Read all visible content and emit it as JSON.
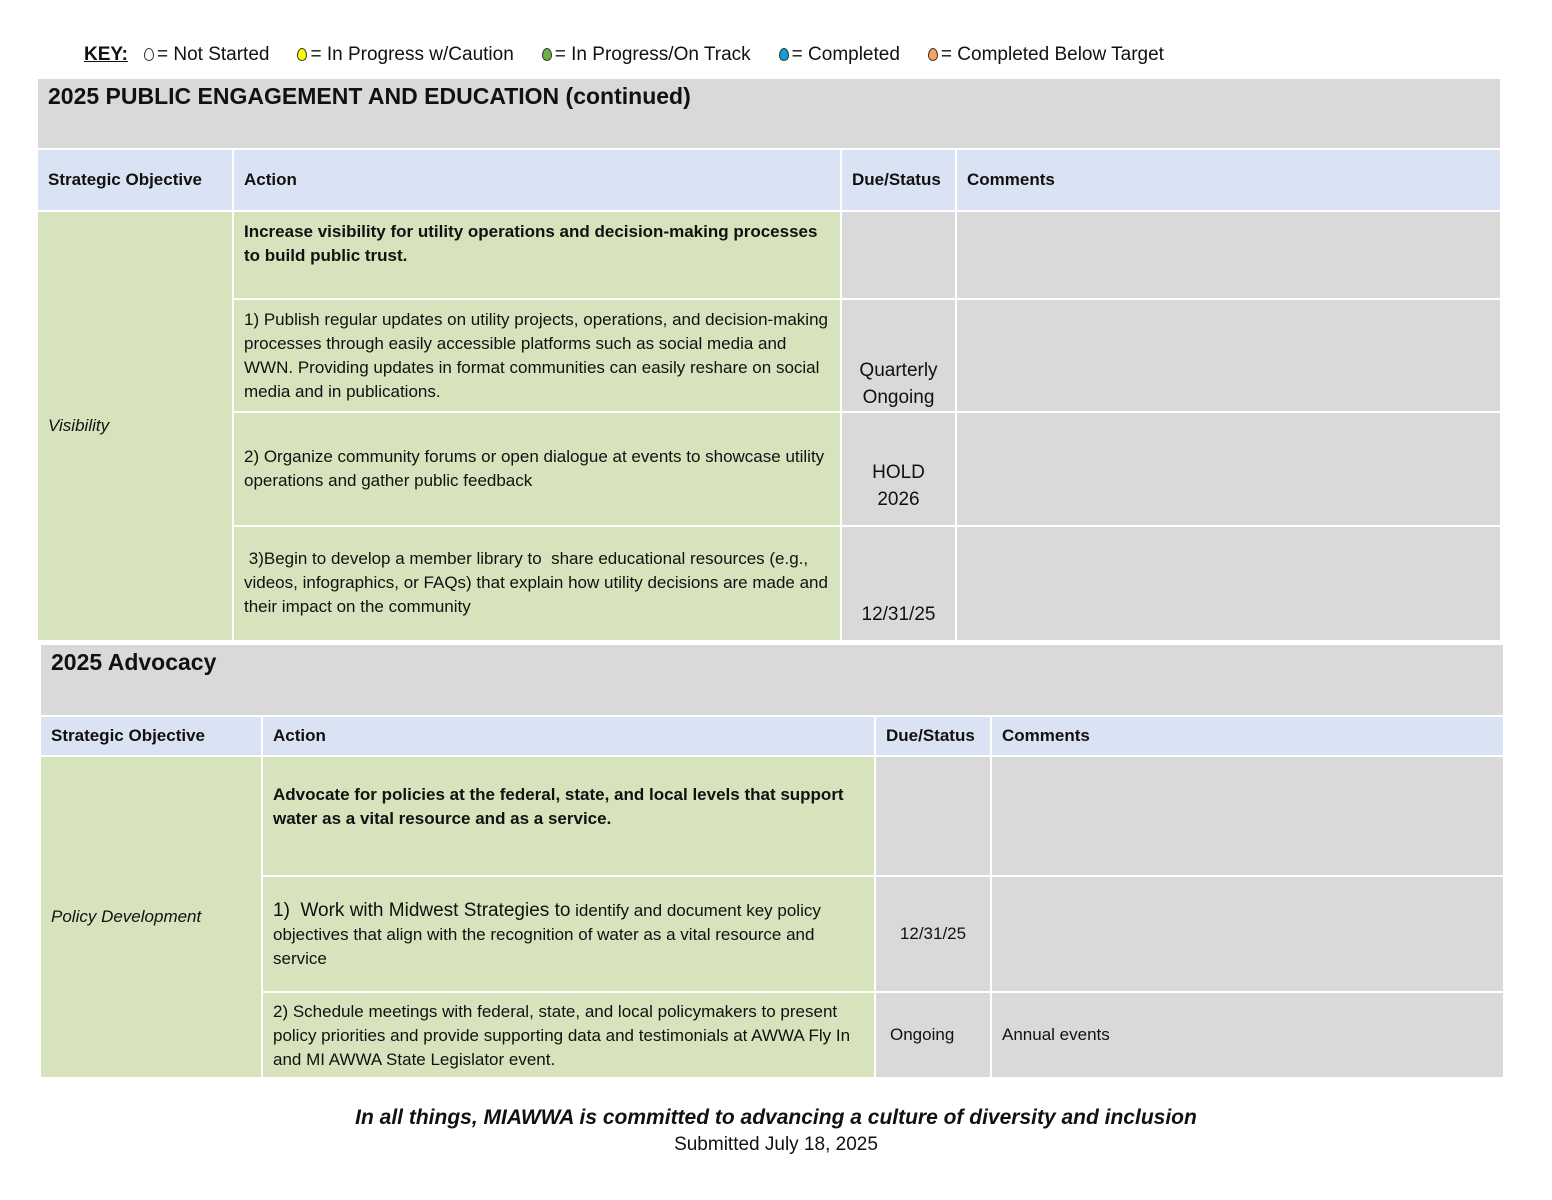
{
  "key": {
    "label": "KEY:",
    "items": [
      {
        "icon": "drop-outline-icon",
        "color": "#ffffff",
        "label": "= Not Started"
      },
      {
        "icon": "drop-yellow-icon",
        "color": "#ffff00",
        "label": "= In Progress w/Caution"
      },
      {
        "icon": "drop-green-icon",
        "color": "#70ad47",
        "label": "= In Progress/On Track"
      },
      {
        "icon": "drop-blue-icon",
        "color": "#0f9ed5",
        "label": "= Completed"
      },
      {
        "icon": "drop-orange-icon",
        "color": "#f4a460",
        "label": "= Completed Below Target"
      }
    ]
  },
  "columns": {
    "objective": "Strategic Objective",
    "action": "Action",
    "due": "Due/Status",
    "comments": "Comments"
  },
  "section1": {
    "title": "2025 PUBLIC ENGAGEMENT AND EDUCATION (continued)",
    "objective": "Visibility",
    "rows": [
      {
        "action": "Increase visibility for utility operations and decision-making processes to build public trust.",
        "due": "",
        "comments": ""
      },
      {
        "action": "1) Publish regular updates on utility projects, operations, and decision-making processes through easily accessible platforms such as social media and WWN. Providing updates in format communities can easily reshare on social media and in publications.",
        "due": "Quarterly Ongoing",
        "comments": ""
      },
      {
        "action": "2) Organize community forums or open dialogue at events to showcase utility operations and gather public feedback",
        "due": "HOLD 2026",
        "comments": ""
      },
      {
        "action": " 3)Begin to develop a member library to  share educational resources (e.g., videos, infographics, or FAQs) that explain how utility decisions are made and their impact on the community",
        "due": "12/31/25",
        "comments": ""
      }
    ]
  },
  "section2": {
    "title": "2025 Advocacy",
    "objective": "Policy Development",
    "rows": [
      {
        "action": "Advocate for policies at the federal, state, and local levels that support water as a vital resource and as a service.",
        "due": "",
        "comments": ""
      },
      {
        "action_lead": "1)  Work with Midwest Strategies to",
        "action": " identify and document key policy objectives that align with the recognition of water as a vital resource and service",
        "due": "12/31/25",
        "comments": ""
      },
      {
        "action": "2) Schedule meetings with federal, state, and local policymakers to present policy priorities and provide supporting data and testimonials at AWWA Fly In and MI AWWA State Legislator event.",
        "due": "Ongoing",
        "comments": "Annual events"
      }
    ]
  },
  "footer": {
    "motto": "In all things, MIAWWA is committed to advancing a culture of diversity and inclusion",
    "submitted": "Submitted July 18, 2025"
  }
}
